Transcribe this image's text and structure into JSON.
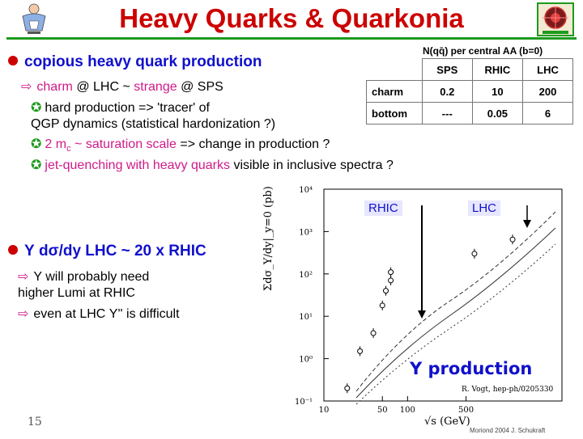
{
  "slide": {
    "title": "Heavy Quarks & Quarkonia",
    "page_number": "15",
    "footer": "Moriond 2004   J. Schukraft"
  },
  "section1": {
    "heading": "copious heavy quark production",
    "line1": {
      "charm": "charm",
      "mid": "@ LHC ~",
      "strange": "strange",
      "end": "@ SPS"
    },
    "line2": "hard production => 'tracer' of",
    "line3": "QGP dynamics (statistical hardonization ?)",
    "line4": {
      "a": "2 m",
      "sub": "c",
      "b": "~ saturation scale",
      "c": "=> change in production ?"
    },
    "line5": {
      "a": "jet-quenching with heavy quarks",
      "b": "visible in inclusive spectra ?"
    }
  },
  "table": {
    "caption": "N(qq̄) per central AA (b=0)",
    "headers": [
      "SPS",
      "RHIC",
      "LHC"
    ],
    "rows": [
      {
        "label": "charm",
        "values": [
          "0.2",
          "10",
          "200"
        ]
      },
      {
        "label": "bottom",
        "values": [
          "---",
          "0.05",
          "6"
        ]
      }
    ]
  },
  "section2": {
    "heading": {
      "a": "Υ d",
      "sigma": "σ",
      "b": "/dy LHC ~ 20 x RHIC"
    },
    "line1": "Υ will probably need",
    "line2": "higher Lumi at RHIC",
    "line3": "even at LHC Υ'' is difficult"
  },
  "plot": {
    "label_rhic": "RHIC",
    "label_lhc": "LHC",
    "caption": "Υ production",
    "reference": "R. Vogt, hep-ph/0205330",
    "ylabel": "Σdσ_Υ/dy|_y=0 (pb)",
    "xlabel": "√s (GeV)",
    "y_ticks": [
      "10⁴",
      "10³",
      "10²",
      "10¹",
      "10⁰",
      "10⁻¹"
    ],
    "x_ticks": [
      "10",
      "50",
      "100",
      "500"
    ]
  },
  "chart_data": {
    "type": "scatter",
    "title": "Υ production",
    "xlabel": "√s (GeV)",
    "ylabel": "Σdσ_Υ/dy|_y=0 (pb)",
    "x_scale": "log",
    "y_scale": "log",
    "xlim": [
      10,
      7000
    ],
    "ylim": [
      0.1,
      10000
    ],
    "series": [
      {
        "values": [
          {
            "x": 19,
            "y": 0.2
          },
          {
            "x": 27,
            "y": 1.5
          },
          {
            "x": 39,
            "y": 4
          },
          {
            "x": 50,
            "y": 18
          },
          {
            "x": 55,
            "y": 40
          },
          {
            "x": 63,
            "y": 70
          },
          {
            "x": 63,
            "y": 110
          },
          {
            "x": 630,
            "y": 300
          },
          {
            "x": 1800,
            "y": 650
          }
        ]
      }
    ]
  }
}
